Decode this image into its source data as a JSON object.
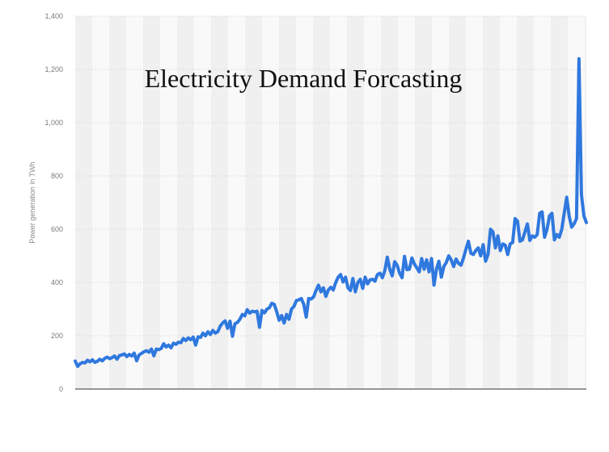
{
  "chart_data": {
    "type": "line",
    "title": "Electricity Demand Forcasting",
    "xlabel": "",
    "ylabel": "Power generation in TWh",
    "ylim": [
      0,
      1400
    ],
    "yticks": [
      0,
      200,
      400,
      600,
      800,
      1000,
      1200,
      1400
    ],
    "ytick_labels": [
      "0",
      "200",
      "400",
      "600",
      "800",
      "1,000",
      "1,200",
      "1,400"
    ],
    "grid": true,
    "legend": "none",
    "line_color": "#2f78de",
    "series": [
      {
        "values": [
          105,
          85,
          95,
          100,
          98,
          108,
          102,
          110,
          100,
          104,
          112,
          106,
          115,
          120,
          114,
          118,
          124,
          112,
          126,
          128,
          132,
          122,
          130,
          124,
          135,
          106,
          128,
          134,
          140,
          144,
          138,
          150,
          125,
          150,
          148,
          152,
          170,
          158,
          165,
          155,
          172,
          168,
          176,
          174,
          190,
          182,
          192,
          185,
          195,
          165,
          196,
          194,
          210,
          200,
          215,
          205,
          220,
          210,
          215,
          236,
          248,
          256,
          228,
          255,
          198,
          245,
          250,
          262,
          280,
          275,
          298,
          285,
          292,
          290,
          292,
          232,
          295,
          286,
          300,
          305,
          322,
          318,
          290,
          258,
          276,
          248,
          280,
          262,
          300,
          310,
          332,
          335,
          340,
          318,
          270,
          340,
          338,
          346,
          370,
          390,
          365,
          380,
          348,
          372,
          382,
          372,
          400,
          420,
          430,
          402,
          420,
          380,
          370,
          415,
          365,
          400,
          412,
          378,
          420,
          395,
          410,
          412,
          405,
          430,
          435,
          418,
          445,
          495,
          450,
          425,
          478,
          465,
          435,
          418,
          498,
          448,
          450,
          492,
          470,
          455,
          440,
          490,
          450,
          485,
          440,
          490,
          390,
          450,
          480,
          420,
          460,
          475,
          500,
          485,
          460,
          488,
          472,
          465,
          492,
          525,
          555,
          510,
          505,
          520,
          530,
          500,
          542,
          480,
          506,
          600,
          590,
          530,
          575,
          520,
          545,
          540,
          505,
          545,
          550,
          640,
          630,
          555,
          560,
          590,
          620,
          558,
          575,
          570,
          580,
          660,
          665,
          570,
          600,
          650,
          660,
          560,
          580,
          570,
          600,
          660,
          720,
          650,
          608,
          620,
          640,
          1240,
          730,
          650,
          625
        ]
      }
    ]
  }
}
